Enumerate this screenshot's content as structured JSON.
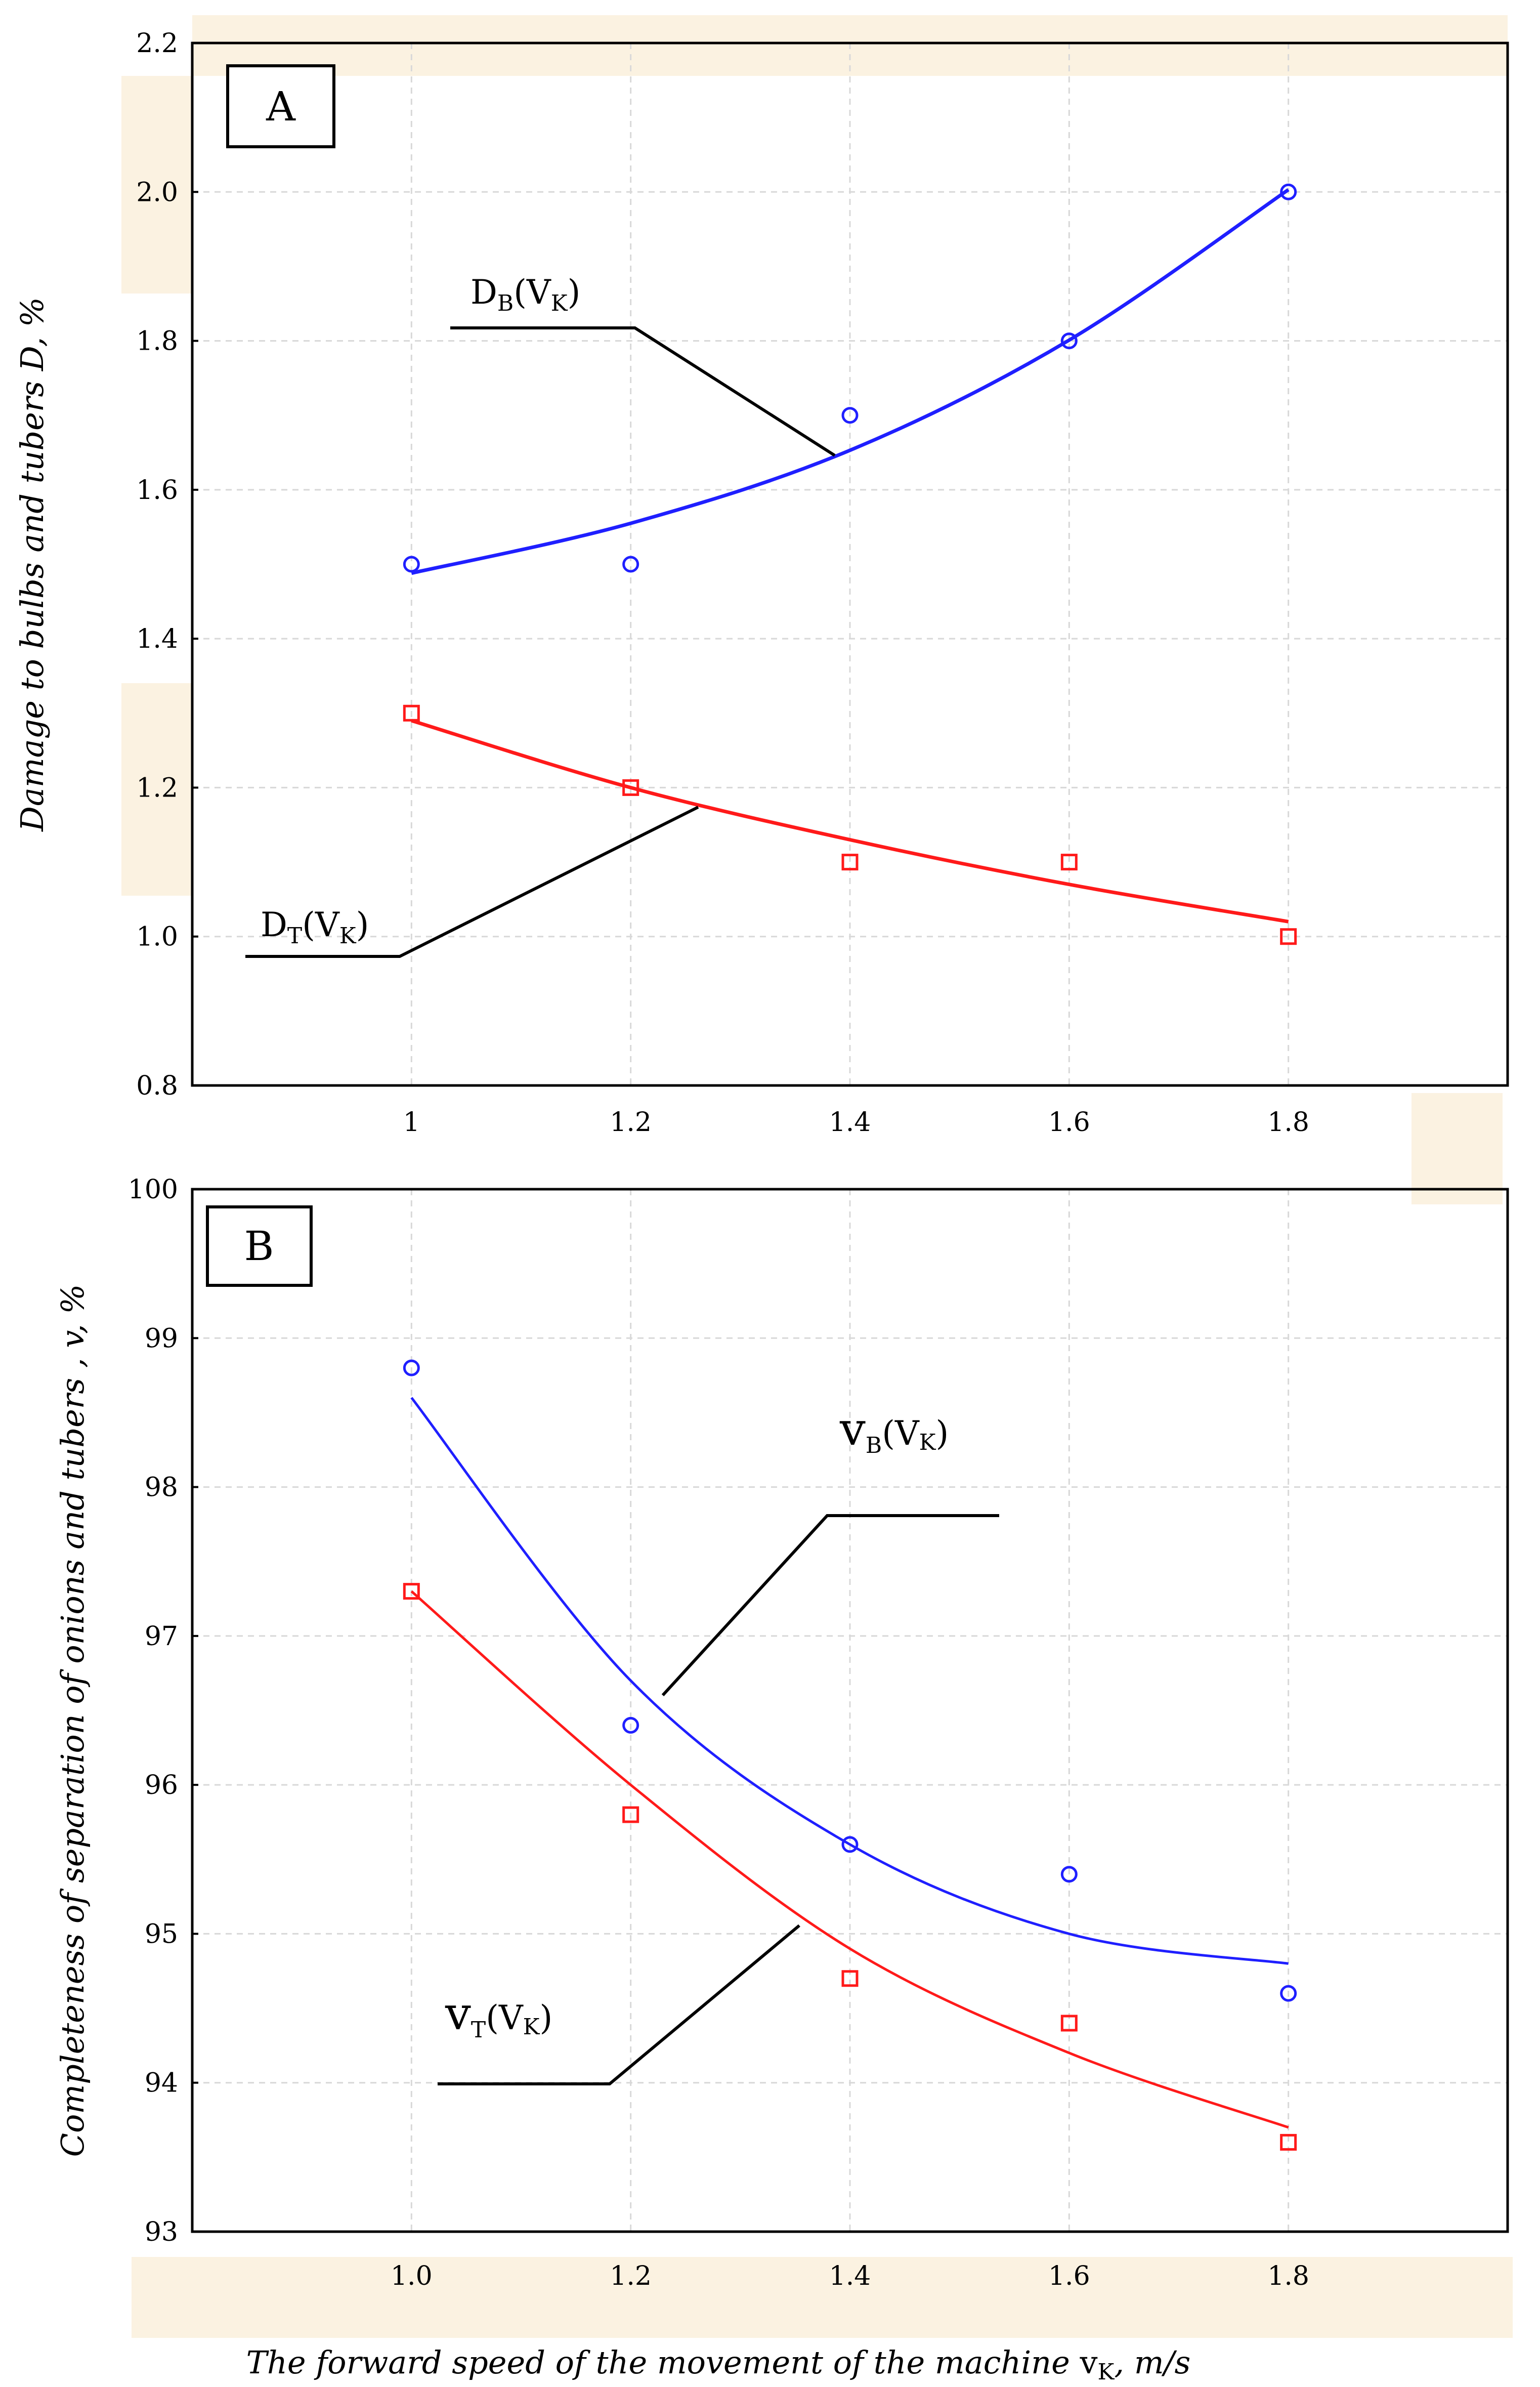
{
  "colors": {
    "blue": "#1f1fff",
    "red": "#ff1a1a",
    "grid": "#d8d8d8",
    "shade": "#fbf2e1"
  },
  "xlabel": {
    "prefix": "The forward speed",
    "middle": "of the movement of the machine",
    "var": "v",
    "sub": "K",
    "unit": ", m/s"
  },
  "chart_data": [
    {
      "type": "scatter",
      "panel": "A",
      "ylabel": "Damage to bulbs and tubers D, %",
      "xlim": [
        0.8,
        2.0
      ],
      "ylim": [
        0.8,
        2.2
      ],
      "x_ticks": [
        "1",
        "1.2",
        "1.4",
        "1.6",
        "1.8"
      ],
      "x_tick_values": [
        1.0,
        1.2,
        1.4,
        1.6,
        1.8
      ],
      "y_ticks": [
        "0.8",
        "1.0",
        "1.2",
        "1.4",
        "1.6",
        "1.8",
        "2.0",
        "2.2"
      ],
      "y_tick_values": [
        0.8,
        1.0,
        1.2,
        1.4,
        1.6,
        1.8,
        2.0,
        2.2
      ],
      "series": [
        {
          "name": "D_B(V_K)",
          "label_main": "D",
          "label_sub": "B",
          "label_arg": "(V",
          "label_arg_sub": "K",
          "label_close": ")",
          "marker": "circle",
          "color": "#1f1fff",
          "x": [
            1.0,
            1.2,
            1.4,
            1.6,
            1.8
          ],
          "values": [
            1.5,
            1.5,
            1.7,
            1.8,
            2.0
          ],
          "fit": [
            1.488,
            1.555,
            1.653,
            1.801,
            2.003
          ]
        },
        {
          "name": "D_T(V_K)",
          "label_main": "D",
          "label_sub": "T",
          "label_arg": "(V",
          "label_arg_sub": "K",
          "label_close": ")",
          "marker": "square",
          "color": "#ff1a1a",
          "x": [
            1.0,
            1.2,
            1.4,
            1.6,
            1.8
          ],
          "values": [
            1.3,
            1.2,
            1.1,
            1.1,
            1.0
          ],
          "fit": [
            1.29,
            1.2,
            1.13,
            1.07,
            1.02
          ]
        }
      ]
    },
    {
      "type": "scatter",
      "panel": "B",
      "ylabel": "Completeness of separation of onions and tubers ,   v, %",
      "xlim": [
        0.8,
        2.0
      ],
      "ylim": [
        93,
        100
      ],
      "x_ticks": [
        "1.0",
        "1.2",
        "1.4",
        "1.6",
        "1.8"
      ],
      "x_tick_values": [
        1.0,
        1.2,
        1.4,
        1.6,
        1.8
      ],
      "y_ticks": [
        "93",
        "94",
        "95",
        "96",
        "97",
        "98",
        "99",
        "100"
      ],
      "y_tick_values": [
        93,
        94,
        95,
        96,
        97,
        98,
        99,
        100
      ],
      "series": [
        {
          "name": "v_B(V_K)",
          "label_main": "v",
          "label_sub": "B",
          "label_arg": "(V",
          "label_arg_sub": "K",
          "label_close": ")",
          "marker": "circle",
          "color": "#1f1fff",
          "x": [
            1.0,
            1.2,
            1.4,
            1.6,
            1.8
          ],
          "values": [
            98.8,
            96.4,
            95.6,
            95.4,
            94.6
          ],
          "fit": [
            98.6,
            96.7,
            95.6,
            95.0,
            94.8
          ]
        },
        {
          "name": "v_T(V_K)",
          "label_main": "v",
          "label_sub": "T",
          "label_arg": "(V",
          "label_arg_sub": "K",
          "label_close": ")",
          "marker": "square",
          "color": "#ff1a1a",
          "x": [
            1.0,
            1.2,
            1.4,
            1.6,
            1.8
          ],
          "values": [
            97.3,
            95.8,
            94.7,
            94.4,
            93.6
          ],
          "fit": [
            97.3,
            96.0,
            94.9,
            94.2,
            93.7
          ]
        }
      ]
    }
  ]
}
